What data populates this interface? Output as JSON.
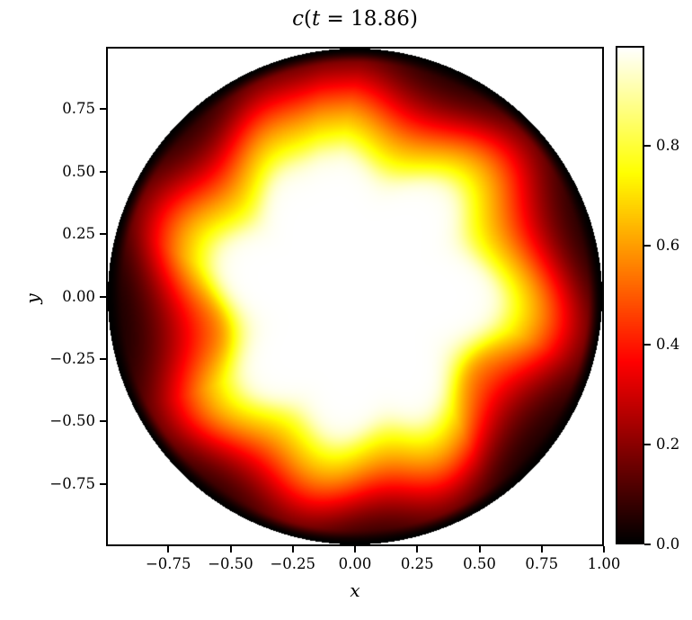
{
  "title": {
    "func": "c",
    "open": "(",
    "var": "t",
    "rest": " = 18.86)"
  },
  "axes": {
    "xlabel": "x",
    "ylabel": "y"
  },
  "chart_data": {
    "type": "heatmap",
    "title": "c(t = 18.86)",
    "xlabel": "x",
    "ylabel": "y",
    "xlim": [
      -1,
      1
    ],
    "ylim": [
      -1,
      1
    ],
    "grid": false,
    "xticks": {
      "values": [
        -0.75,
        -0.5,
        -0.25,
        0.0,
        0.25,
        0.5,
        0.75,
        1.0
      ],
      "labels": [
        "−0.75",
        "−0.50",
        "−0.25",
        "0.00",
        "0.25",
        "0.50",
        "0.75",
        "1.00"
      ]
    },
    "yticks": {
      "values": [
        0.75,
        0.5,
        0.25,
        0.0,
        -0.25,
        -0.5,
        -0.75
      ],
      "labels": [
        "0.75",
        "0.50",
        "0.25",
        "0.00",
        "−0.25",
        "−0.50",
        "−0.75"
      ]
    },
    "colorbar": {
      "vmin": 0.0,
      "vmax": 1.0,
      "tick_values": [
        0.0,
        0.2,
        0.4,
        0.6,
        0.8
      ],
      "tick_labels": [
        "0.0",
        "0.2",
        "0.4",
        "0.6",
        "0.8"
      ],
      "colormap": "hot",
      "position": "right"
    },
    "colormap_hot_breakpoints": {
      "red_full_at": 0.365079,
      "green_full_at": 0.746032,
      "blue_full_at": 1.0
    },
    "frame_color": "#000000",
    "background_outside_domain": "#ffffff",
    "domain": "unit disk r <= 1 centered at origin",
    "field_model": {
      "description": "flame-front fingering: saturated white core (c=1) with radial yellow plumes fanning into orange, dark red valleys, black outer rim at r=1",
      "core_radius_valley": 0.49,
      "core_bulge": 0.13,
      "front_width": 0.032,
      "plume_angles_deg": [
        163,
        122,
        97,
        48,
        -3,
        -60,
        -98,
        -140
      ],
      "plume_widths_deg": [
        12,
        10,
        12,
        12,
        13,
        11,
        12,
        12
      ],
      "plume_strengths": [
        0.95,
        0.8,
        1.0,
        0.95,
        1.0,
        0.9,
        0.95,
        0.9
      ],
      "fan_width_scale": 1.8,
      "halo_amplitude": 0.68,
      "halo_sigma_r": 0.19,
      "halo_offset_r": 0.02,
      "glow_amplitude": 0.45,
      "glow_outer_r": 0.96,
      "glow_valley_floor": 0.6,
      "rim_width": 0.06,
      "twist_deg_per_unit_r": -18,
      "twist_ref_r": 0.6
    }
  }
}
